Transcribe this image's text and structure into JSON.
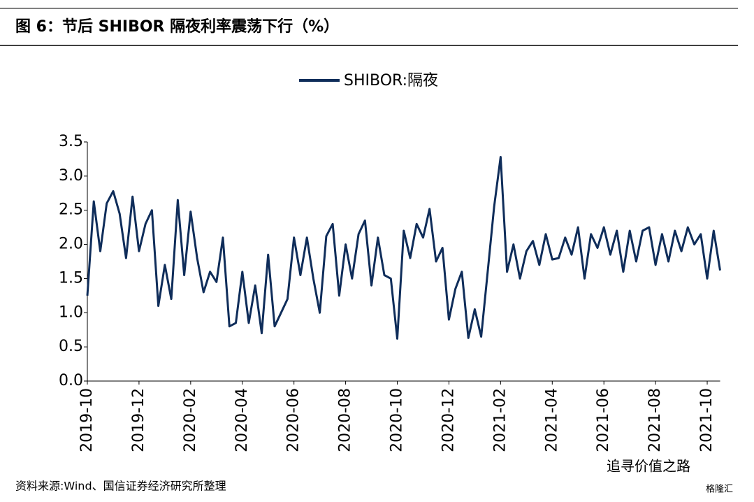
{
  "chart_data": {
    "type": "line",
    "title": "图 6：节后 SHIBOR 隔夜利率震荡下行（%）",
    "source": "资料来源:Wind、国信证券经济研究所整理",
    "watermark": "追寻价值之路",
    "watermark_logo": "格隆汇",
    "categories": [
      "2019-10",
      null,
      null,
      null,
      null,
      null,
      null,
      null,
      "2019-12",
      null,
      null,
      null,
      null,
      null,
      null,
      null,
      "2020-02",
      null,
      null,
      null,
      null,
      null,
      null,
      null,
      "2020-04",
      null,
      null,
      null,
      null,
      null,
      null,
      null,
      "2020-06",
      null,
      null,
      null,
      null,
      null,
      null,
      null,
      "2020-08",
      null,
      null,
      null,
      null,
      null,
      null,
      null,
      "2020-10",
      null,
      null,
      null,
      null,
      null,
      null,
      null,
      "2020-12",
      null,
      null,
      null,
      null,
      null,
      null,
      null,
      "2021-02",
      null,
      null,
      null,
      null,
      null,
      null,
      null,
      "2021-04",
      null,
      null,
      null,
      null,
      null,
      null,
      null,
      "2021-06",
      null,
      null,
      null,
      null,
      null,
      null,
      null,
      "2021-08",
      null,
      null,
      null,
      null,
      null,
      null,
      null,
      "2021-10",
      null,
      null
    ],
    "series": [
      {
        "name": "SHIBOR:隔夜",
        "color": "#0f2d5a",
        "values": [
          1.25,
          2.63,
          1.9,
          2.6,
          2.78,
          2.45,
          1.8,
          2.7,
          1.9,
          2.3,
          2.5,
          1.1,
          1.7,
          1.2,
          2.65,
          1.55,
          2.48,
          1.8,
          1.3,
          1.6,
          1.45,
          2.1,
          0.8,
          0.85,
          1.6,
          0.85,
          1.4,
          0.7,
          1.85,
          0.8,
          1.0,
          1.2,
          2.1,
          1.55,
          2.1,
          1.5,
          1.0,
          2.12,
          2.3,
          1.25,
          2.0,
          1.5,
          2.15,
          2.35,
          1.4,
          2.1,
          1.55,
          1.5,
          0.62,
          2.2,
          1.8,
          2.3,
          2.1,
          2.52,
          1.75,
          1.95,
          0.9,
          1.35,
          1.6,
          0.63,
          1.05,
          0.65,
          1.6,
          2.55,
          3.28,
          1.6,
          2.0,
          1.5,
          1.9,
          2.05,
          1.7,
          2.15,
          1.78,
          1.8,
          2.1,
          1.85,
          2.25,
          1.5,
          2.15,
          1.95,
          2.25,
          1.85,
          2.2,
          1.6,
          2.2,
          1.75,
          2.2,
          2.25,
          1.7,
          2.15,
          1.75,
          2.2,
          1.9,
          2.25,
          2.0,
          2.15,
          1.5,
          2.2,
          1.62
        ]
      }
    ],
    "ylim": [
      0,
      3.5
    ],
    "yticks": [
      {
        "value": 0,
        "label": "0.0"
      },
      0.5,
      {
        "value": 1,
        "label": "1.0"
      },
      1.5,
      {
        "value": 2,
        "label": "2.0"
      },
      2.5,
      {
        "value": 3,
        "label": "3.0"
      },
      3.5
    ],
    "legend": "top"
  }
}
